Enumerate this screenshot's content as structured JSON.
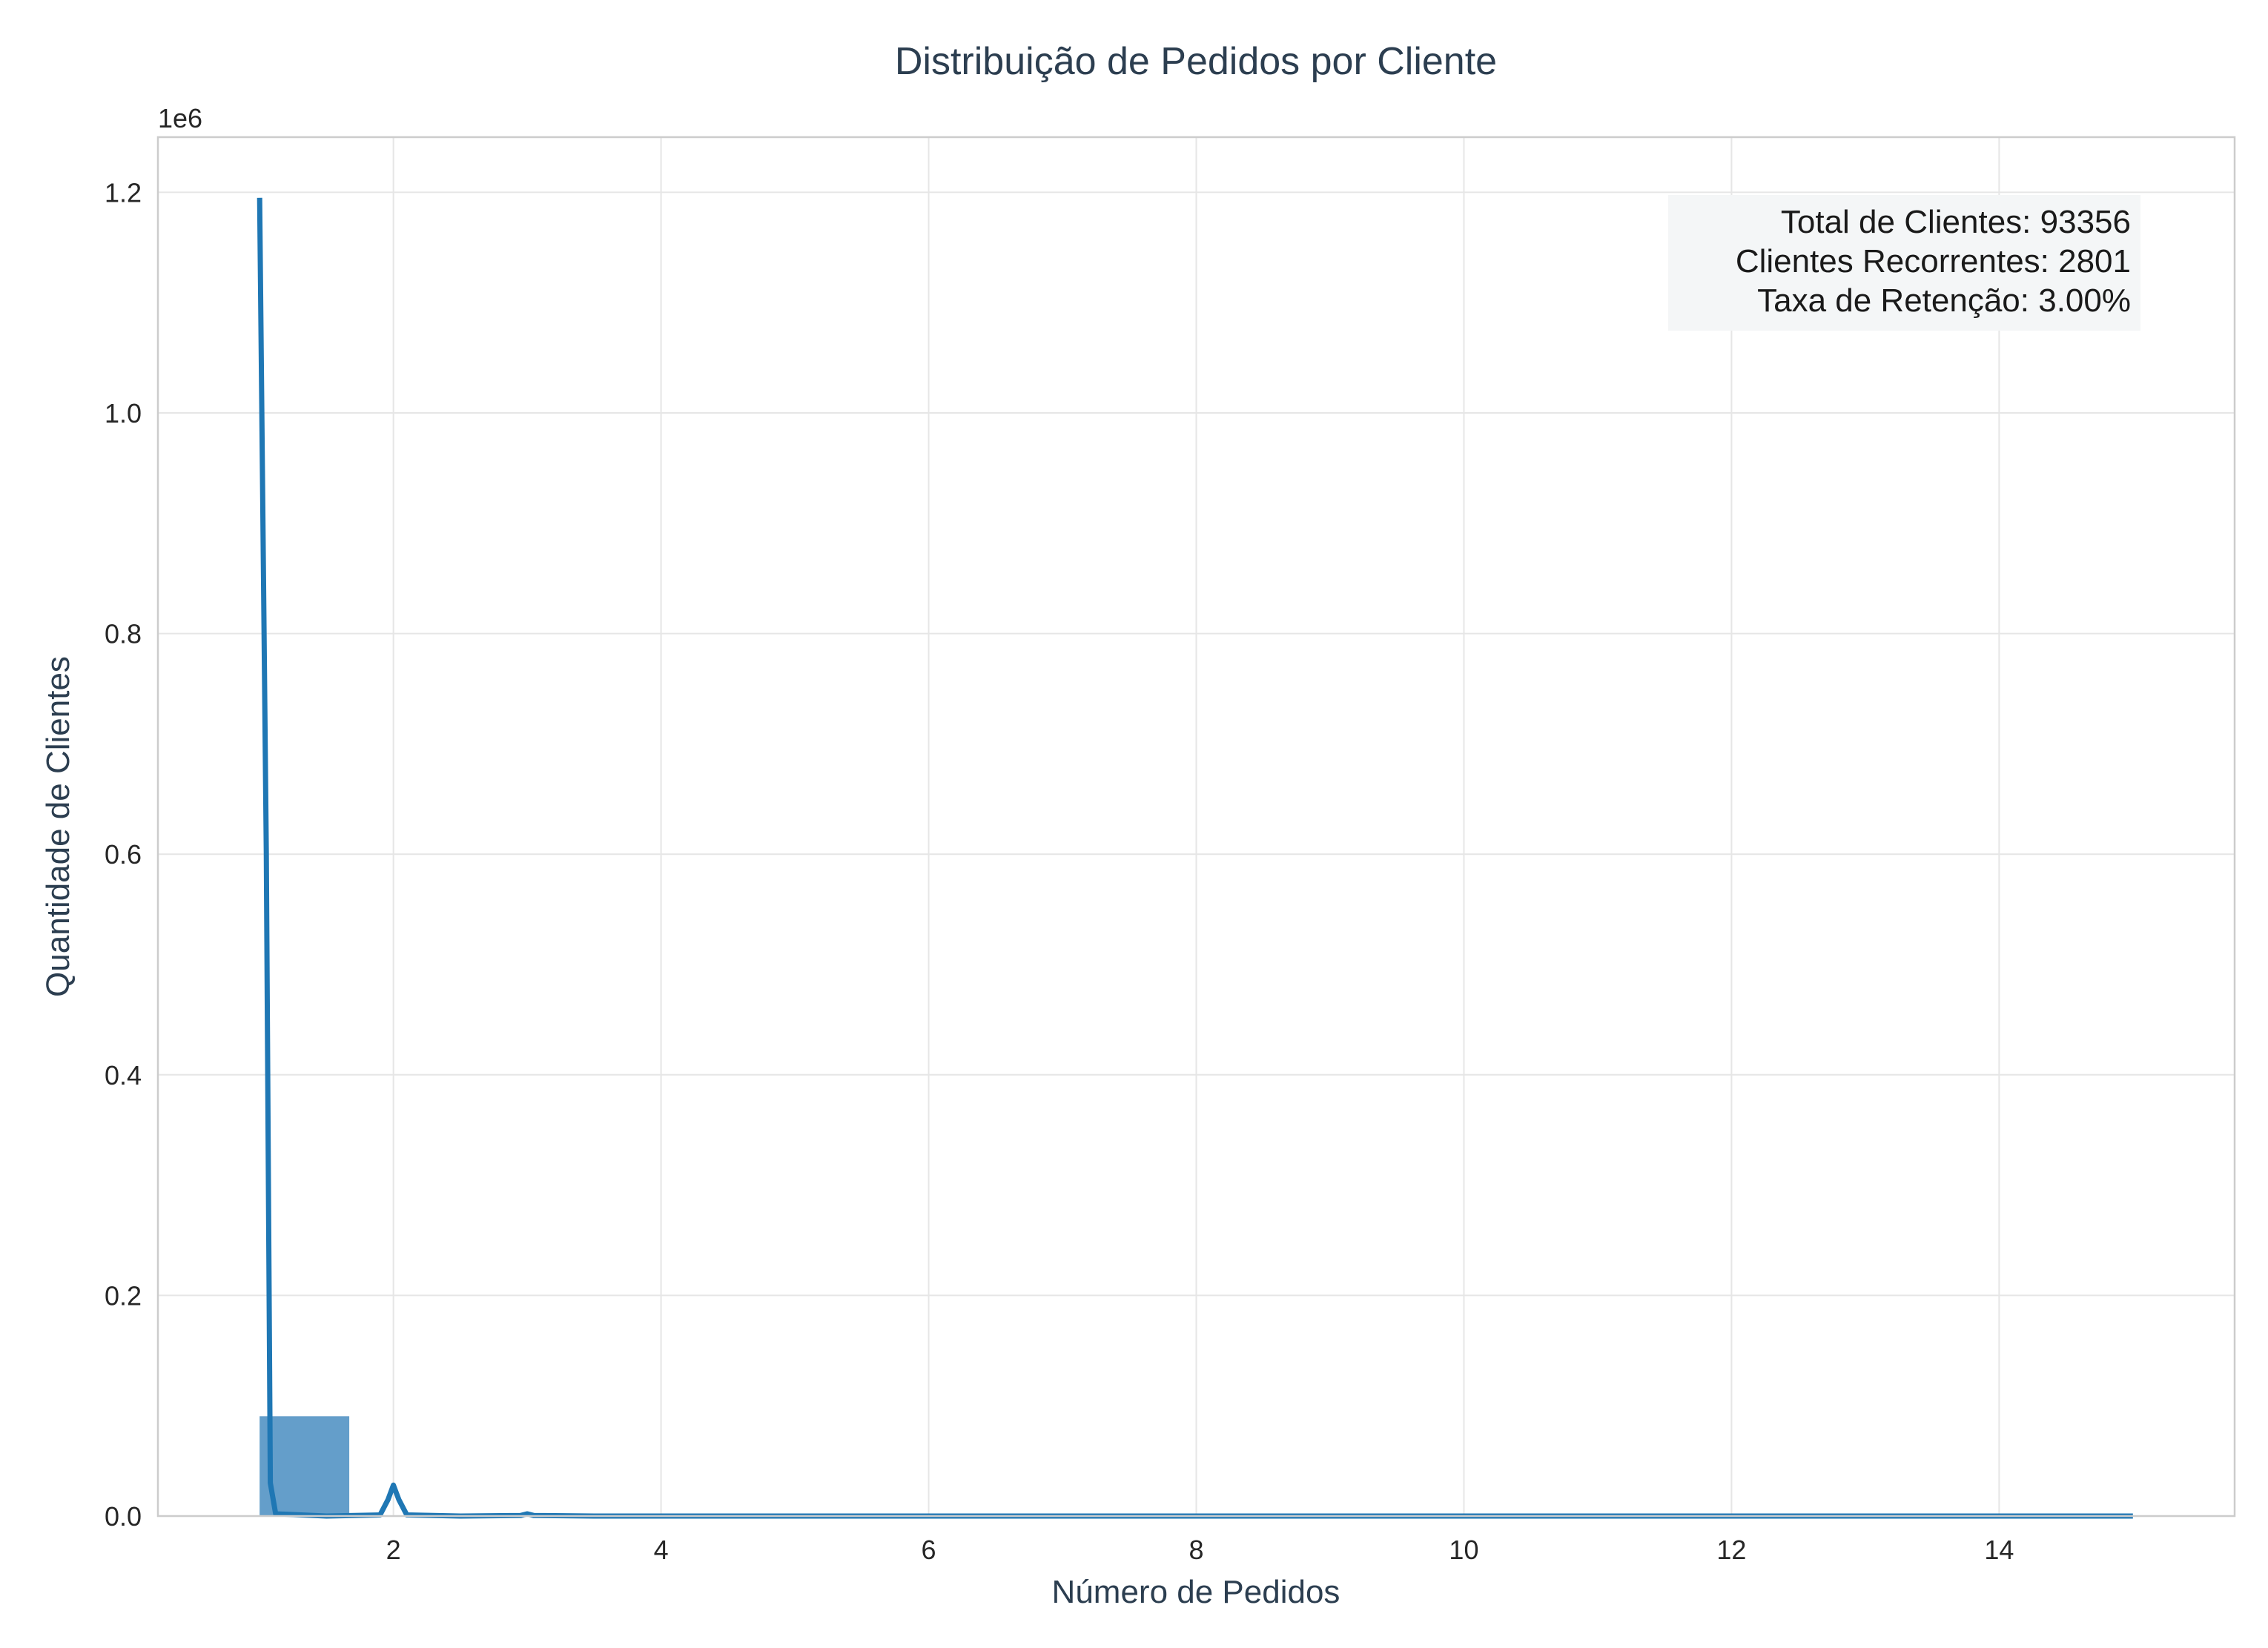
{
  "chart_data": {
    "type": "bar",
    "title": "Distribuição de Pedidos por Cliente",
    "xlabel": "Número de Pedidos",
    "ylabel": "Quantidade de Clientes",
    "y_offset_label": "1e6",
    "xlim": [
      0.24,
      15.76
    ],
    "ylim": [
      0,
      1.25
    ],
    "x_ticks": [
      2,
      4,
      6,
      8,
      10,
      12,
      14
    ],
    "x_tick_labels": [
      "2",
      "4",
      "6",
      "8",
      "10",
      "12",
      "14"
    ],
    "y_ticks": [
      0.0,
      0.2,
      0.4,
      0.6,
      0.8,
      1.0,
      1.2
    ],
    "y_tick_labels": [
      "0.0",
      "0.2",
      "0.4",
      "0.6",
      "0.8",
      "1.0",
      "1.2"
    ],
    "grid": true,
    "bars": [
      {
        "x0": 1.0,
        "x1": 1.67,
        "value": 0.0905
      }
    ],
    "kde_line": {
      "x": [
        1.0,
        1.05,
        1.08,
        1.12,
        1.5,
        1.9,
        1.96,
        2.0,
        2.04,
        2.1,
        2.5,
        2.95,
        3.0,
        3.05,
        3.5,
        15.0
      ],
      "y": [
        1.195,
        0.6,
        0.03,
        0.002,
        0.0,
        0.001,
        0.015,
        0.028,
        0.015,
        0.001,
        0.0,
        0.0005,
        0.002,
        0.0005,
        0.0,
        0.0
      ]
    },
    "annotation": [
      "Total de Clientes: 93356",
      "Clientes Recorrentes: 2801",
      "Taxa de Retenção: 3.00%"
    ],
    "colors": {
      "bar": "#2878b5",
      "line": "#1f77b4",
      "text": "#2c3e50"
    }
  }
}
